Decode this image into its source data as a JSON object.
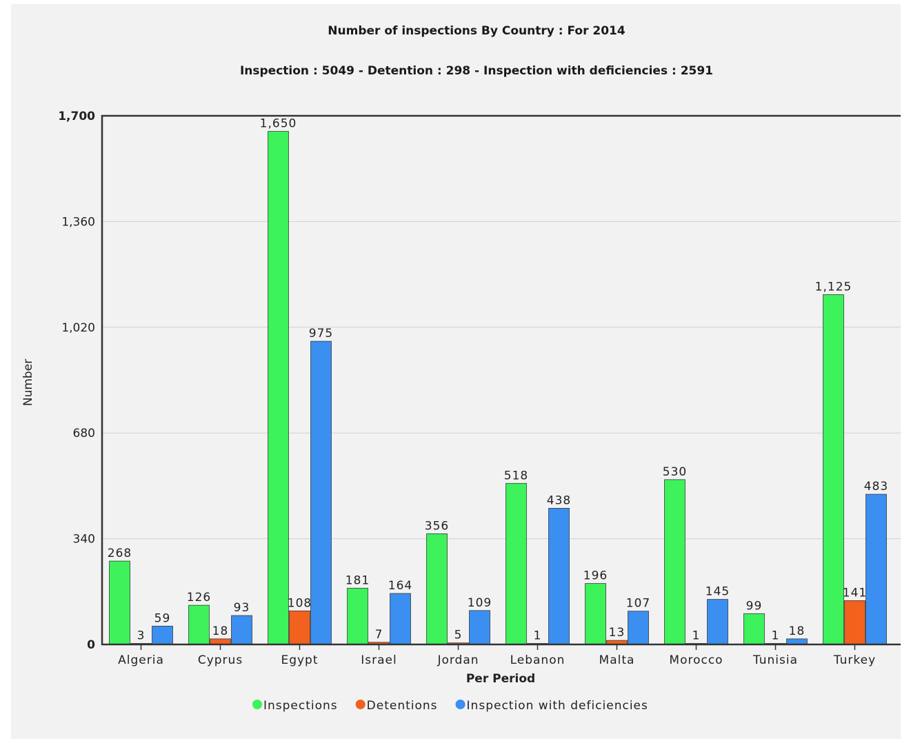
{
  "chart_data": {
    "type": "bar",
    "title": "Number of inspections By Country : For 2014",
    "subtitle": "Inspection : 5049 - Detention : 298 - Inspection with deficiencies : 2591",
    "xlabel": "Per Period",
    "ylabel": "Number",
    "ylim": [
      0,
      1700
    ],
    "yticks": [
      0,
      340,
      680,
      1020,
      1360,
      1700
    ],
    "ytick_labels": [
      "0",
      "340",
      "680",
      "1,020",
      "1,360",
      "1,700"
    ],
    "grid": true,
    "legend_position": "bottom-center",
    "categories": [
      "Algeria",
      "Cyprus",
      "Egypt",
      "Israel",
      "Jordan",
      "Lebanon",
      "Malta",
      "Morocco",
      "Tunisia",
      "Turkey"
    ],
    "series": [
      {
        "name": "Inspections",
        "color": "#3df25a",
        "values": [
          268,
          126,
          1650,
          181,
          356,
          518,
          196,
          530,
          99,
          1125
        ],
        "labels": [
          "268",
          "126",
          "1,650",
          "181",
          "356",
          "518",
          "196",
          "530",
          "99",
          "1,125"
        ]
      },
      {
        "name": "Detentions",
        "color": "#f2611d",
        "values": [
          3,
          18,
          108,
          7,
          5,
          1,
          13,
          1,
          1,
          141
        ],
        "labels": [
          "3",
          "18",
          "108",
          "7",
          "5",
          "1",
          "13",
          "1",
          "1",
          "141"
        ]
      },
      {
        "name": "Inspection with deficiencies",
        "color": "#3a8ff0",
        "values": [
          59,
          93,
          975,
          164,
          109,
          438,
          107,
          145,
          18,
          483
        ],
        "labels": [
          "59",
          "93",
          "975",
          "164",
          "109",
          "438",
          "107",
          "145",
          "18",
          "483"
        ]
      }
    ]
  }
}
